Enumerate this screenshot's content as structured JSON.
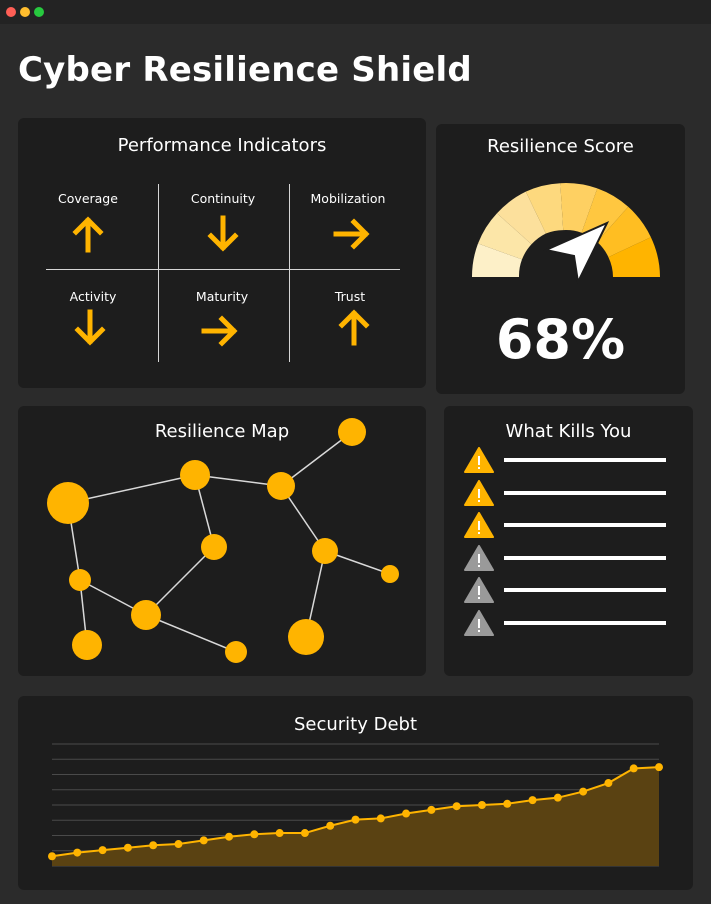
{
  "window": {
    "controls": [
      "close",
      "minimize",
      "maximize"
    ]
  },
  "app": {
    "title": "Cyber Resilience Shield"
  },
  "colors": {
    "accent": "#FFB400",
    "panel": "#1d1d1d",
    "background": "#2b2b2b",
    "muted": "#9a9a9a"
  },
  "performance": {
    "title": "Performance Indicators",
    "items": [
      {
        "label": "Coverage",
        "trend": "up"
      },
      {
        "label": "Continuity",
        "trend": "down"
      },
      {
        "label": "Mobilization",
        "trend": "right"
      },
      {
        "label": "Activity",
        "trend": "down"
      },
      {
        "label": "Maturity",
        "trend": "right"
      },
      {
        "label": "Trust",
        "trend": "up"
      }
    ]
  },
  "resilience_score": {
    "title": "Resilience Score",
    "value": "68%",
    "level": 0.68
  },
  "resilience_map": {
    "title": "Resilience Map"
  },
  "what_kills_you": {
    "title": "What Kills You",
    "items": [
      {
        "severity": "warning-icon-active"
      },
      {
        "severity": "warning-icon-active"
      },
      {
        "severity": "warning-icon-active"
      },
      {
        "severity": "warning-icon-inactive"
      },
      {
        "severity": "warning-icon-inactive"
      },
      {
        "severity": "warning-icon-inactive"
      }
    ]
  },
  "chart_data": {
    "type": "area",
    "title": "Security Debt",
    "xlabel": "",
    "ylabel": "",
    "grid": true,
    "ylim": [
      0,
      10
    ],
    "x": [
      1,
      2,
      3,
      4,
      5,
      6,
      7,
      8,
      9,
      10,
      11,
      12,
      13,
      14,
      15,
      16,
      17,
      18,
      19,
      20,
      21,
      22,
      23,
      24,
      25
    ],
    "series": [
      {
        "values": [
          0.8,
          1.1,
          1.3,
          1.5,
          1.7,
          1.8,
          2.1,
          2.4,
          2.6,
          2.7,
          2.7,
          3.3,
          3.8,
          3.9,
          4.3,
          4.6,
          4.9,
          5.0,
          5.1,
          5.4,
          5.6,
          6.1,
          6.8,
          8.0,
          8.1
        ]
      }
    ]
  }
}
